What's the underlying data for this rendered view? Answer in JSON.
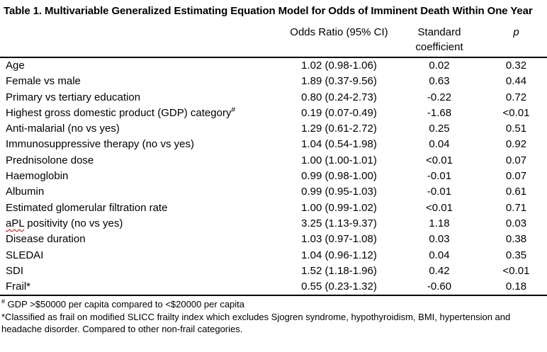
{
  "title": "Table 1. Multivariable Generalized Estimating Equation Model for Odds of Imminent Death Within One Year",
  "colors": {
    "text": "#000000",
    "background": "#ffffff",
    "spellcheck_squiggle": "#c00000",
    "rule_lines": "#000000"
  },
  "table": {
    "headers": {
      "variable": "",
      "odds_ratio": "Odds Ratio (95% CI)",
      "standard_coefficient": "Standard coefficient",
      "p": "p"
    },
    "rows": [
      {
        "label": "Age",
        "or": "1.02 (0.98-1.06)",
        "coef": "0.02",
        "p": "0.32"
      },
      {
        "label": "Female vs male",
        "or": "1.89 (0.37-9.56)",
        "coef": "0.63",
        "p": "0.44"
      },
      {
        "label": "Primary vs tertiary education",
        "or": "0.80 (0.24-2.73)",
        "coef": "-0.22",
        "p": "0.72"
      },
      {
        "label": "Highest gross domestic product (GDP) category",
        "label_sup": "#",
        "or": "0.19 (0.07-0.49)",
        "coef": "-1.68",
        "p": "<0.01"
      },
      {
        "label": "Anti-malarial (no vs yes)",
        "or": "1.29 (0.61-2.72)",
        "coef": "0.25",
        "p": "0.51"
      },
      {
        "label": "Immunosuppressive therapy (no vs yes)",
        "or": "1.04 (0.54-1.98)",
        "coef": "0.04",
        "p": "0.92"
      },
      {
        "label": "Prednisolone dose",
        "or": "1.00 (1.00-1.01)",
        "coef": "<0.01",
        "p": "0.07"
      },
      {
        "label": "Haemoglobin",
        "or": "0.99 (0.98-1.00)",
        "coef": "-0.01",
        "p": "0.07"
      },
      {
        "label": "Albumin",
        "or": "0.99 (0.95-1.03)",
        "coef": "-0.01",
        "p": "0.61"
      },
      {
        "label": "Estimated glomerular filtration rate",
        "or": "1.00 (0.99-1.02)",
        "coef": "<0.01",
        "p": "0.71"
      },
      {
        "label_misspelled": "aPL",
        "label": " positivity (no vs yes)",
        "or": "3.25 (1.13-9.37)",
        "coef": "1.18",
        "p": "0.03"
      },
      {
        "label": "Disease duration",
        "or": "1.03 (0.97-1.08)",
        "coef": "0.03",
        "p": "0.38"
      },
      {
        "label": "SLEDAI",
        "or": "1.04 (0.96-1.12)",
        "coef": "0.04",
        "p": "0.35"
      },
      {
        "label": "SDI",
        "or": "1.52 (1.18-1.96)",
        "coef": "0.42",
        "p": "<0.01"
      },
      {
        "label": "Frail*",
        "or": "0.55 (0.23-1.32)",
        "coef": "-0.60",
        "p": "0.18"
      }
    ]
  },
  "footnotes": [
    {
      "sup": "#",
      "text": " GDP >$50000 per capita compared to <$20000 per capita"
    },
    {
      "text": "*Classified as frail on modified SLICC frailty index which excludes Sjogren syndrome, hypothyroidism, BMI, hypertension and headache disorder. Compared to other non-frail categories."
    }
  ]
}
